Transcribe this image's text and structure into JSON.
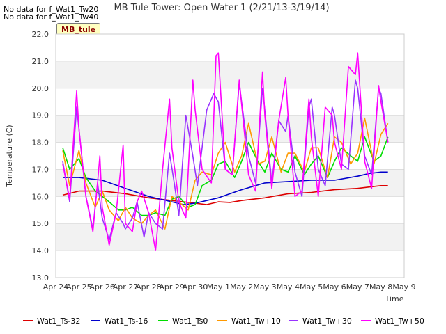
{
  "header": {
    "nodata_lines": [
      "No data for f_Wat1_Tw20",
      "No data for f_Wat1_Tw40"
    ],
    "station_badge": "MB_tule"
  },
  "chart_data": {
    "type": "line",
    "title": "MB Tule Tower: Open Water 1 (2/21/13-3/19/14)",
    "xlabel": "Time",
    "ylabel": "Temperature (C)",
    "ylim": [
      13.0,
      22.0
    ],
    "xlim": [
      0,
      15
    ],
    "y_ticks": [
      13.0,
      14.0,
      15.0,
      16.0,
      17.0,
      18.0,
      19.0,
      20.0,
      21.0,
      22.0
    ],
    "x_ticks": [
      {
        "x": 0,
        "label": "Apr 24"
      },
      {
        "x": 1,
        "label": "Apr 25"
      },
      {
        "x": 2,
        "label": "Apr 26"
      },
      {
        "x": 3,
        "label": "Apr 27"
      },
      {
        "x": 4,
        "label": "Apr 28"
      },
      {
        "x": 5,
        "label": "Apr 29"
      },
      {
        "x": 6,
        "label": "Apr 30"
      },
      {
        "x": 7,
        "label": "May 1"
      },
      {
        "x": 8,
        "label": "May 2"
      },
      {
        "x": 9,
        "label": "May 3"
      },
      {
        "x": 10,
        "label": "May 4"
      },
      {
        "x": 11,
        "label": "May 5"
      },
      {
        "x": 12,
        "label": "May 6"
      },
      {
        "x": 13,
        "label": "May 7"
      },
      {
        "x": 14,
        "label": "May 8"
      },
      {
        "x": 15,
        "label": "May 9"
      }
    ],
    "grid": true,
    "legend_position": "bottom",
    "series": [
      {
        "name": "Wat1_Ts-32",
        "color": "#dd0000",
        "x": [
          0.3,
          1,
          2,
          3,
          4,
          5,
          5.5,
          6,
          6.5,
          7,
          7.5,
          8,
          9,
          10,
          11,
          12,
          13,
          13.5,
          14,
          14.3
        ],
        "y": [
          16.05,
          16.2,
          16.2,
          16.1,
          15.95,
          15.85,
          15.8,
          15.75,
          15.7,
          15.8,
          15.78,
          15.85,
          15.95,
          16.1,
          16.15,
          16.25,
          16.3,
          16.35,
          16.4,
          16.4
        ]
      },
      {
        "name": "Wat1_Ts-16",
        "color": "#0000cc",
        "x": [
          0.3,
          1,
          2,
          3,
          4,
          5,
          5.5,
          6,
          7,
          8,
          9,
          10,
          11,
          12,
          13,
          13.5,
          14,
          14.3
        ],
        "y": [
          16.7,
          16.7,
          16.6,
          16.3,
          16.0,
          15.8,
          15.7,
          15.75,
          15.95,
          16.25,
          16.5,
          16.55,
          16.6,
          16.6,
          16.75,
          16.85,
          16.9,
          16.9
        ]
      },
      {
        "name": "Wat1_Ts0",
        "color": "#00dd00",
        "x": [
          0.3,
          0.6,
          1,
          1.3,
          1.7,
          2,
          2.3,
          2.7,
          3,
          3.3,
          3.7,
          4,
          4.3,
          4.7,
          5,
          5.3,
          5.7,
          6,
          6.3,
          6.7,
          7,
          7.3,
          7.7,
          8,
          8.3,
          8.7,
          9,
          9.3,
          9.7,
          10,
          10.3,
          10.7,
          11,
          11.3,
          11.7,
          12,
          12.3,
          12.7,
          13,
          13.3,
          13.7,
          14,
          14.3
        ],
        "y": [
          17.8,
          17.0,
          17.4,
          16.7,
          16.2,
          16.0,
          15.8,
          15.5,
          15.5,
          15.6,
          15.3,
          15.3,
          15.4,
          15.3,
          15.9,
          16.0,
          15.6,
          15.7,
          16.4,
          16.6,
          17.2,
          17.3,
          16.7,
          17.3,
          18.0,
          17.3,
          16.9,
          17.6,
          17.0,
          16.9,
          17.5,
          16.8,
          17.2,
          17.5,
          16.7,
          17.3,
          17.8,
          17.5,
          17.3,
          18.2,
          17.3,
          17.5,
          18.2
        ]
      },
      {
        "name": "Wat1_Tw+10",
        "color": "#ff9900",
        "x": [
          0.3,
          0.6,
          1,
          1.3,
          1.7,
          2,
          2.3,
          2.7,
          3,
          3.3,
          3.7,
          4,
          4.3,
          4.7,
          5,
          5.3,
          5.7,
          6,
          6.3,
          6.7,
          7,
          7.3,
          7.7,
          8,
          8.3,
          8.7,
          9,
          9.3,
          9.7,
          10,
          10.3,
          10.7,
          11,
          11.3,
          11.7,
          12,
          12.3,
          12.7,
          13,
          13.3,
          13.7,
          14,
          14.3
        ],
        "y": [
          17.7,
          16.4,
          17.7,
          16.5,
          15.6,
          16.2,
          15.5,
          15.1,
          15.6,
          15.2,
          15.0,
          15.3,
          15.5,
          14.8,
          16.0,
          15.8,
          15.5,
          16.6,
          16.9,
          16.8,
          17.6,
          18.0,
          16.9,
          17.5,
          18.7,
          17.2,
          17.3,
          18.2,
          16.9,
          17.6,
          17.6,
          16.9,
          17.8,
          17.8,
          16.7,
          18.2,
          18.0,
          17.2,
          17.6,
          18.9,
          17.2,
          18.3,
          18.7
        ]
      },
      {
        "name": "Wat1_Tw+30",
        "color": "#9933ff",
        "x": [
          0.3,
          0.6,
          0.9,
          1.0,
          1.3,
          1.6,
          1.8,
          2.0,
          2.3,
          2.6,
          2.9,
          3.0,
          3.3,
          3.5,
          3.8,
          4.0,
          4.3,
          4.6,
          4.9,
          5.1,
          5.3,
          5.6,
          5.9,
          6.1,
          6.5,
          6.8,
          7.0,
          7.3,
          7.6,
          7.9,
          8.0,
          8.3,
          8.6,
          8.9,
          9.0,
          9.3,
          9.6,
          9.9,
          10.0,
          10.3,
          10.6,
          10.9,
          11.0,
          11.3,
          11.6,
          11.9,
          12.0,
          12.3,
          12.6,
          12.9,
          13.0,
          13.3,
          13.6,
          13.9,
          14.0,
          14.3
        ],
        "y": [
          17.3,
          15.8,
          19.3,
          18.5,
          16.0,
          14.8,
          16.5,
          15.2,
          14.4,
          15.4,
          15.0,
          14.8,
          15.2,
          15.8,
          14.5,
          15.4,
          15.0,
          14.8,
          17.6,
          16.5,
          15.3,
          19.0,
          17.5,
          16.4,
          19.2,
          19.8,
          19.5,
          17.0,
          16.8,
          20.2,
          19.5,
          17.5,
          16.5,
          20.0,
          19.2,
          16.5,
          18.8,
          18.4,
          19.0,
          16.9,
          16.0,
          19.3,
          19.6,
          17.0,
          16.4,
          19.3,
          19.0,
          17.2,
          17.0,
          20.3,
          20.0,
          17.5,
          16.8,
          20.0,
          19.8,
          18.0
        ]
      },
      {
        "name": "Wat1_Tw+50",
        "color": "#ff00ff",
        "x": [
          0.3,
          0.6,
          0.9,
          1.0,
          1.3,
          1.6,
          1.8,
          1.9,
          2.0,
          2.3,
          2.6,
          2.9,
          3.0,
          3.3,
          3.5,
          3.7,
          4.0,
          4.3,
          4.6,
          4.9,
          5.0,
          5.3,
          5.6,
          5.9,
          6.0,
          6.3,
          6.7,
          6.9,
          7.0,
          7.3,
          7.6,
          7.9,
          8.0,
          8.3,
          8.6,
          8.9,
          9.0,
          9.3,
          9.6,
          9.9,
          10.0,
          10.3,
          10.6,
          10.9,
          11.0,
          11.3,
          11.6,
          11.9,
          12.0,
          12.3,
          12.6,
          12.9,
          13.0,
          13.3,
          13.6,
          13.9,
          14.0,
          14.3
        ],
        "y": [
          17.2,
          15.9,
          19.9,
          18.5,
          16.0,
          14.7,
          16.5,
          17.5,
          15.6,
          14.2,
          15.4,
          17.9,
          15.0,
          14.7,
          15.8,
          16.2,
          15.4,
          14.0,
          17.0,
          19.6,
          17.8,
          15.8,
          15.2,
          20.3,
          19.2,
          17.0,
          16.5,
          21.2,
          21.3,
          17.0,
          16.8,
          20.3,
          19.4,
          16.8,
          16.2,
          20.6,
          19.0,
          16.3,
          18.8,
          20.4,
          19.0,
          16.0,
          16.2,
          19.6,
          18.2,
          16.0,
          19.3,
          19.0,
          18.0,
          17.0,
          20.8,
          20.5,
          21.3,
          17.3,
          16.3,
          20.1,
          19.5,
          18.0
        ]
      }
    ]
  }
}
